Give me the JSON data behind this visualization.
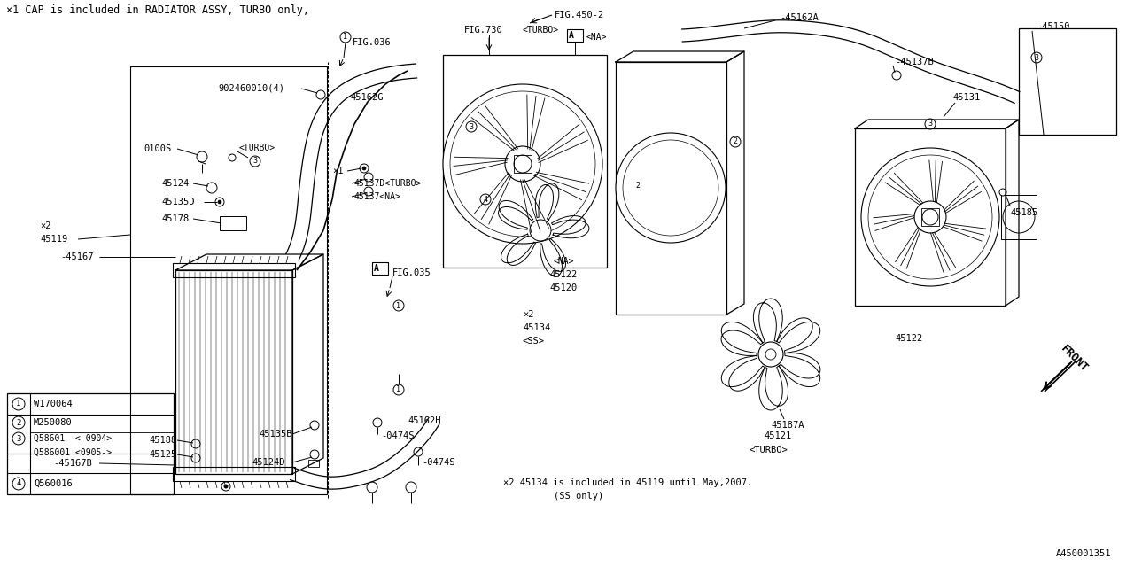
{
  "bg_color": "#ffffff",
  "line_color": "#000000",
  "title_note": "×1 CAP is included in RADIATOR ASSY, TURBO only,",
  "note2": "×2 45134 is included in 45119 until May,2007.",
  "note2b": "(SS only)",
  "diagram_id": "A450001351",
  "fig_id": "FIG.450-2"
}
